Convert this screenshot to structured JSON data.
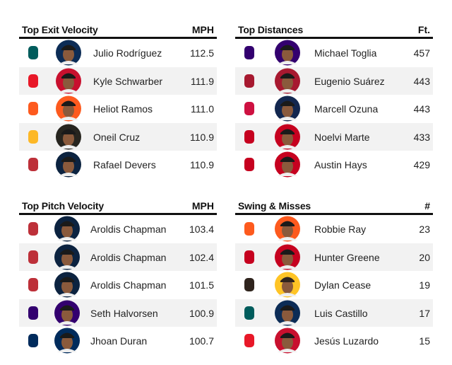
{
  "tables": [
    {
      "title": "Top Exit Velocity",
      "unit": "MPH",
      "rows": [
        {
          "player": "Julio Rodríguez",
          "value": "112.5"
        },
        {
          "player": "Kyle Schwarber",
          "value": "111.9"
        },
        {
          "player": "Heliot Ramos",
          "value": "111.0"
        },
        {
          "player": "Oneil Cruz",
          "value": "110.9"
        },
        {
          "player": "Rafael Devers",
          "value": "110.9"
        }
      ]
    },
    {
      "title": "Top Distances",
      "unit": "Ft.",
      "rows": [
        {
          "player": "Michael Toglia",
          "value": "457"
        },
        {
          "player": "Eugenio Suárez",
          "value": "443"
        },
        {
          "player": "Marcell Ozuna",
          "value": "443"
        },
        {
          "player": "Noelvi Marte",
          "value": "433"
        },
        {
          "player": "Austin Hays",
          "value": "429"
        }
      ]
    },
    {
      "title": "Top Pitch Velocity",
      "unit": "MPH",
      "rows": [
        {
          "player": "Aroldis Chapman",
          "value": "103.4"
        },
        {
          "player": "Aroldis Chapman",
          "value": "102.4"
        },
        {
          "player": "Aroldis Chapman",
          "value": "101.5"
        },
        {
          "player": "Seth Halvorsen",
          "value": "100.9"
        },
        {
          "player": "Jhoan Duran",
          "value": "100.7"
        }
      ]
    },
    {
      "title": "Swing & Misses",
      "unit": "#",
      "rows": [
        {
          "player": "Robbie Ray",
          "value": "23"
        },
        {
          "player": "Hunter Greene",
          "value": "20"
        },
        {
          "player": "Dylan Cease",
          "value": "19"
        },
        {
          "player": "Luis Castillo",
          "value": "17"
        },
        {
          "player": "Jesús Luzardo",
          "value": "15"
        }
      ]
    }
  ]
}
